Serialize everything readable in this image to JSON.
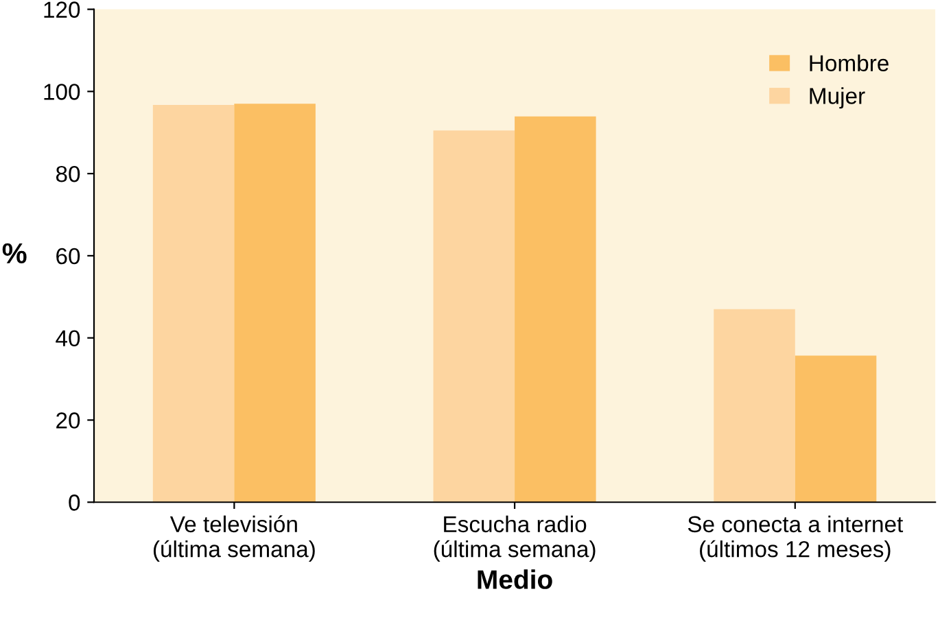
{
  "chart_data": {
    "type": "bar",
    "xlabel": "Medio",
    "ylabel": "%",
    "categories": [
      "Ve televisión\n(última semana)",
      "Escucha radio\n(última semana)",
      "Se conecta a internet\n(últimos 12 meses)"
    ],
    "series": [
      {
        "name": "Mujer",
        "color": "#fdd5a0",
        "values": [
          96.7,
          90.5,
          47.0
        ]
      },
      {
        "name": "Hombre",
        "color": "#fbbf63",
        "values": [
          97.0,
          93.9,
          35.7
        ]
      }
    ],
    "ylim": [
      0,
      120
    ],
    "yticks": [
      0,
      20,
      40,
      60,
      80,
      100,
      120
    ],
    "grid": false,
    "legend": "top right"
  }
}
